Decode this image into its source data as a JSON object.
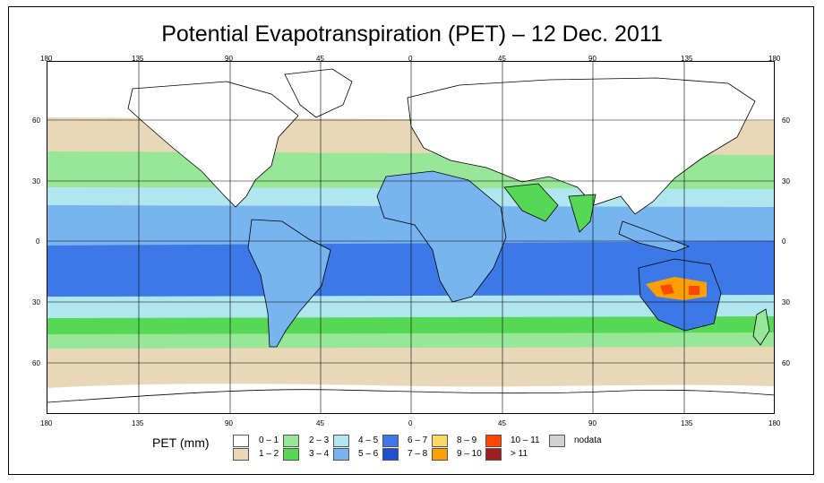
{
  "title": "Potential Evapotranspiration (PET) – 12 Dec. 2011",
  "axes": {
    "lon_ticks": [
      "180",
      "135",
      "90",
      "45",
      "0",
      "45",
      "90",
      "135",
      "180"
    ],
    "lat_ticks": [
      "60",
      "30",
      "0",
      "30",
      "60"
    ]
  },
  "legend": {
    "title": "PET (mm)",
    "items": [
      {
        "label": "0 – 1",
        "color": "#ffffff"
      },
      {
        "label": "1 – 2",
        "color": "#e8d8b8"
      },
      {
        "label": "2 – 3",
        "color": "#98e698"
      },
      {
        "label": "3 – 4",
        "color": "#55d955"
      },
      {
        "label": "4 – 5",
        "color": "#b0e6f0"
      },
      {
        "label": "5 – 6",
        "color": "#78b4f0"
      },
      {
        "label": "6 – 7",
        "color": "#3c78e6"
      },
      {
        "label": "7 – 8",
        "color": "#1e50d2"
      },
      {
        "label": "8 – 9",
        "color": "#ffd764"
      },
      {
        "label": "9 – 10",
        "color": "#ffa000"
      },
      {
        "label": "10 – 11",
        "color": "#ff4600"
      },
      {
        "label": "> 11",
        "color": "#a01e1e"
      },
      {
        "label": "nodata",
        "color": "#d2d2d2"
      }
    ]
  }
}
